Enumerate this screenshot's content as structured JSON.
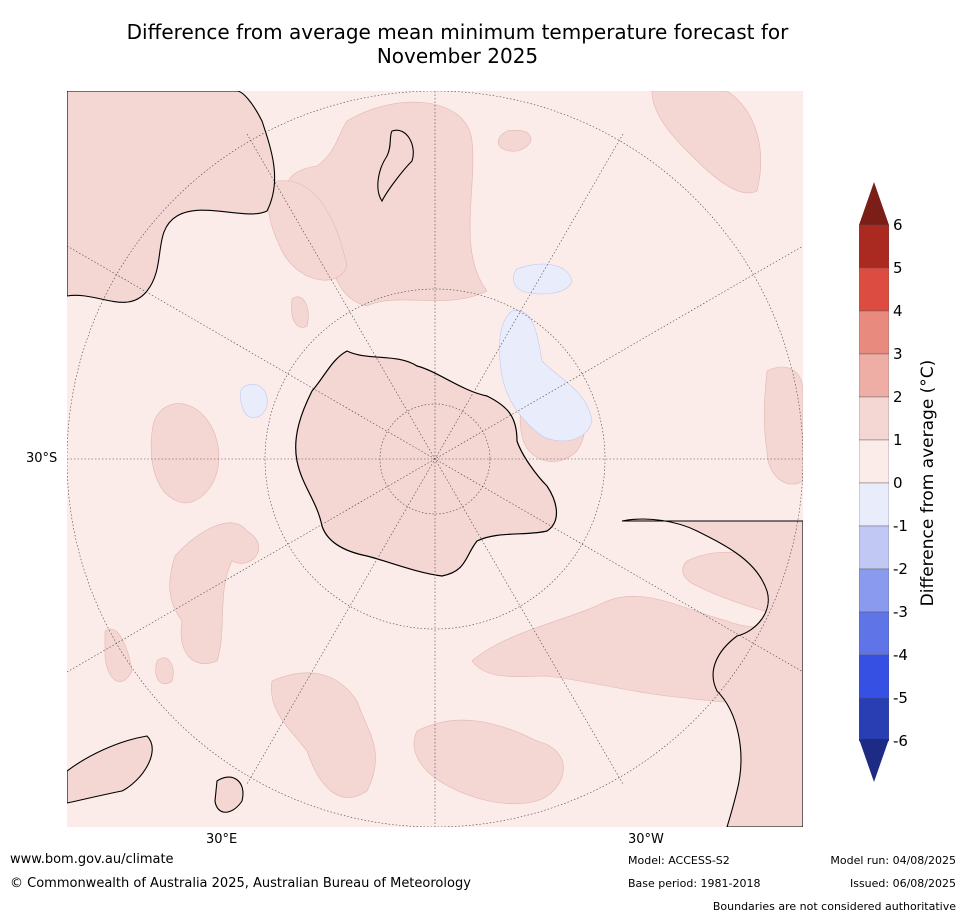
{
  "title": {
    "line1": "Difference from average mean minimum temperature forecast for",
    "line2": "November 2025"
  },
  "map": {
    "projection": "south-polar-stereographic",
    "graticule": {
      "lat_labels": [
        {
          "text": "30°S"
        }
      ],
      "lon_labels": [
        {
          "text": "30°E"
        },
        {
          "text": "30°W"
        }
      ]
    },
    "regions": [
      {
        "name": "Antarctica",
        "category": "1 to 2"
      },
      {
        "name": "Southern Ocean",
        "category": "0 to 1"
      },
      {
        "name": "South Atlantic patch",
        "category": "-1 to 0"
      },
      {
        "name": "Indian Ocean patch",
        "category": "-1 to 0"
      },
      {
        "name": "Australia (southern)",
        "category": "1 to 2"
      },
      {
        "name": "New Zealand",
        "category": "1 to 2"
      },
      {
        "name": "South America",
        "category": "1 to 2"
      },
      {
        "name": "Southern Africa",
        "category": "1 to 2"
      }
    ]
  },
  "legend": {
    "title": "Difference from average (°C)",
    "extend": "both",
    "min": -6,
    "max": 6,
    "ticks": [
      "6",
      "5",
      "4",
      "3",
      "2",
      "1",
      "0",
      "-1",
      "-2",
      "-3",
      "-4",
      "-5",
      "-6"
    ],
    "bins": [
      {
        "range": "5 to 6",
        "color": "#aa2a22"
      },
      {
        "range": "4 to 5",
        "color": "#dd4c40"
      },
      {
        "range": "3 to 4",
        "color": "#e88a7e"
      },
      {
        "range": "2 to 3",
        "color": "#eeaea6"
      },
      {
        "range": "1 to 2",
        "color": "#f4d6d3"
      },
      {
        "range": "0 to 1",
        "color": "#fbecea"
      },
      {
        "range": "-1 to 0",
        "color": "#e8ecfb"
      },
      {
        "range": "-2 to -1",
        "color": "#c0c8f3"
      },
      {
        "range": "-3 to -2",
        "color": "#8a9bef"
      },
      {
        "range": "-4 to -3",
        "color": "#5f74e6"
      },
      {
        "range": "-5 to -4",
        "color": "#3650e3"
      },
      {
        "range": "-6 to -5",
        "color": "#2a3eb3"
      }
    ],
    "over_color": "#7b1e18",
    "under_color": "#1d2b84"
  },
  "footer": {
    "website": "www.bom.gov.au/climate",
    "copyright": "© Commonwealth of Australia 2025, Australian Bureau of Meteorology",
    "model": "Model: ACCESS-S2",
    "base_period": "Base period: 1981-2018",
    "model_run": "Model run: 04/08/2025",
    "issued": "Issued: 06/08/2025",
    "disclaimer": "Boundaries are not considered authoritative"
  }
}
